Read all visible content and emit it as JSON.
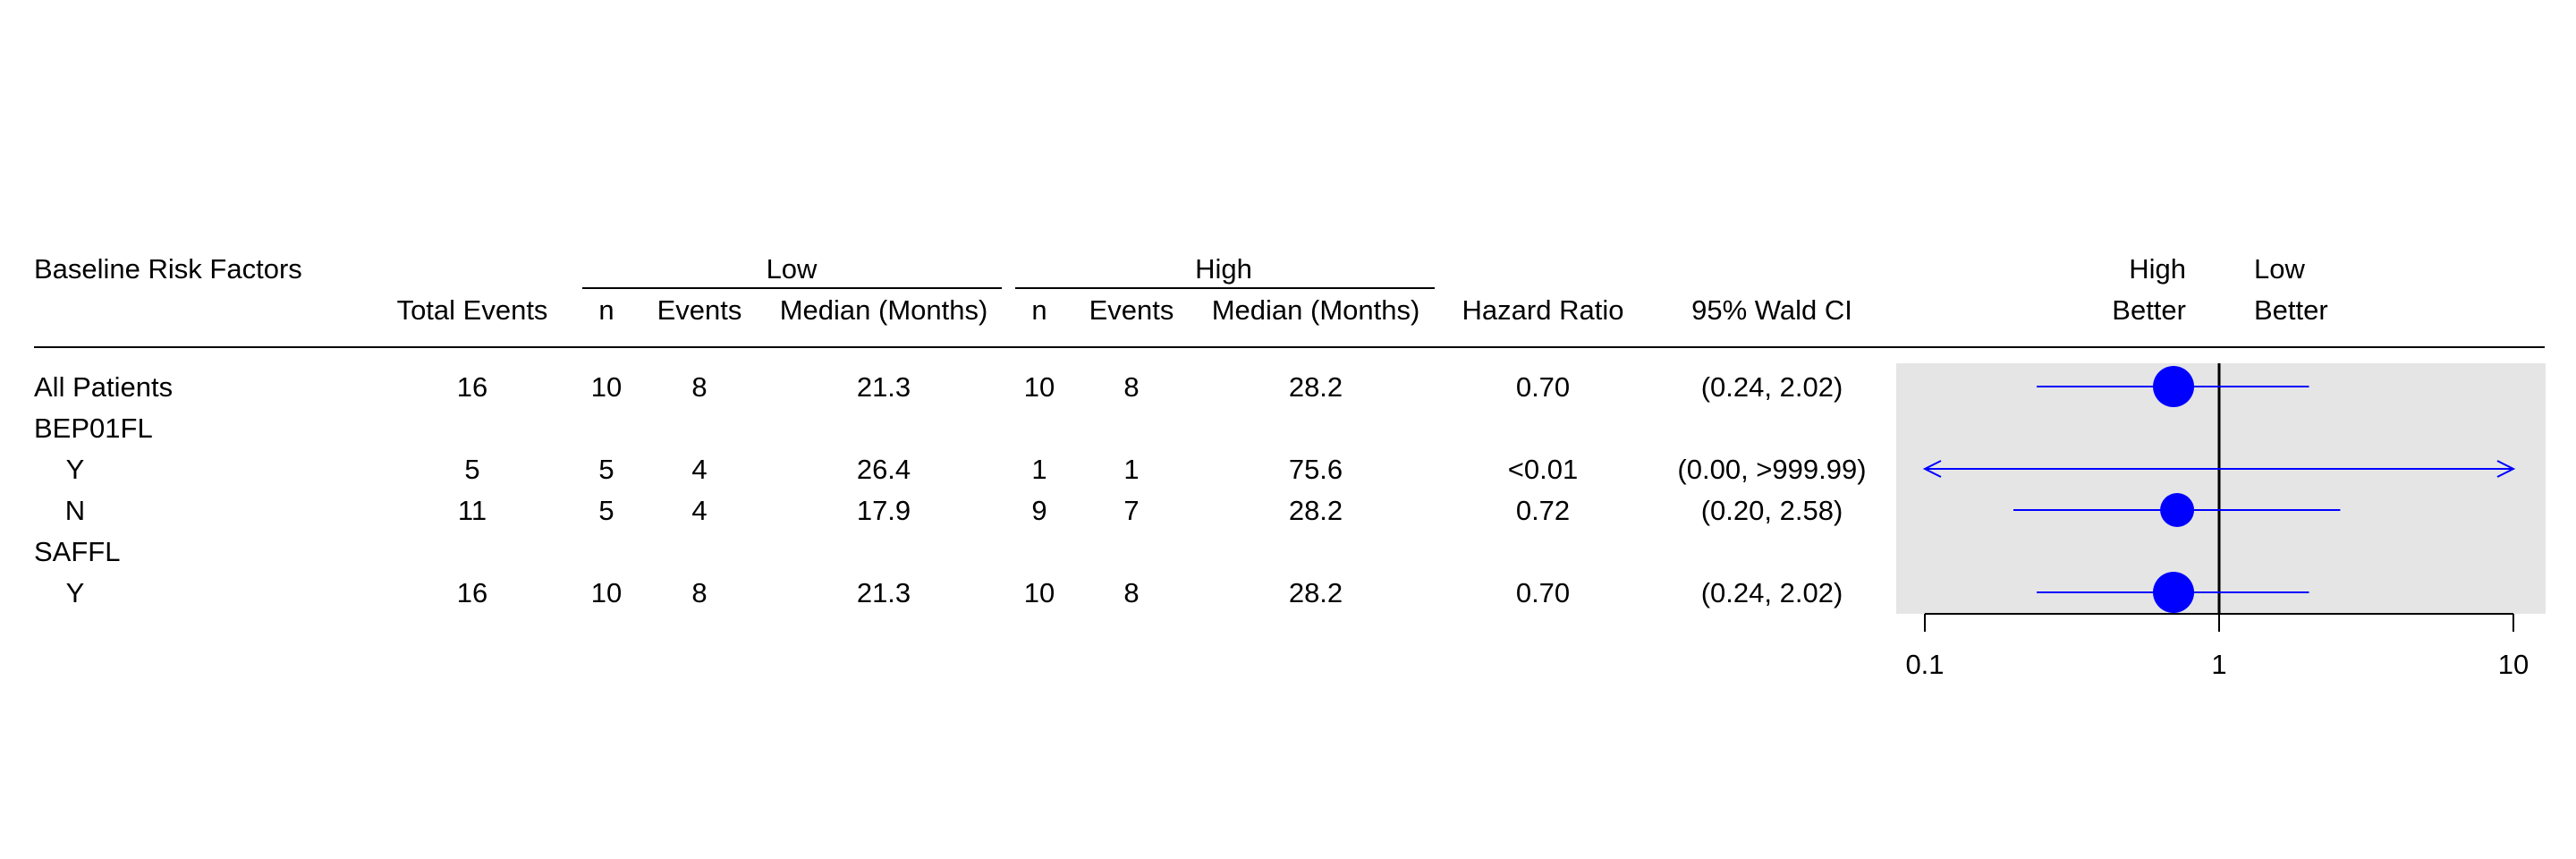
{
  "chart_data": {
    "type": "forest",
    "header": {
      "label_col": "Baseline Risk Factors",
      "total_events": "Total Events",
      "group_low": "Low",
      "group_high": "High",
      "n": "n",
      "events": "Events",
      "median": "Median (Months)",
      "hazard_ratio": "Hazard Ratio",
      "ci": "95% Wald CI",
      "favor_left_1": "High",
      "favor_left_2": "Better",
      "favor_right_1": "Low",
      "favor_right_2": "Better"
    },
    "rows": [
      {
        "label": "All Patients",
        "indent": false,
        "total": "16",
        "low_n": "10",
        "low_events": "8",
        "low_median": "21.3",
        "high_n": "10",
        "high_events": "8",
        "high_median": "28.2",
        "hr_text": "0.70",
        "ci_text": "(0.24, 2.02)",
        "hr": 0.7,
        "lo": 0.24,
        "hi": 2.02,
        "size": "large"
      },
      {
        "label": "BEP01FL",
        "indent": false,
        "heading": true
      },
      {
        "label": "Y",
        "indent": true,
        "total": "5",
        "low_n": "5",
        "low_events": "4",
        "low_median": "26.4",
        "high_n": "1",
        "high_events": "1",
        "high_median": "75.6",
        "hr_text": "<0.01",
        "ci_text": "(0.00, >999.99)",
        "hr": null,
        "lo": 0.1,
        "hi": 10,
        "arrow_left": true,
        "arrow_right": true
      },
      {
        "label": "N",
        "indent": true,
        "total": "11",
        "low_n": "5",
        "low_events": "4",
        "low_median": "17.9",
        "high_n": "9",
        "high_events": "7",
        "high_median": "28.2",
        "hr_text": "0.72",
        "ci_text": "(0.20, 2.58)",
        "hr": 0.72,
        "lo": 0.2,
        "hi": 2.58,
        "size": "medium"
      },
      {
        "label": "SAFFL",
        "indent": false,
        "heading": true
      },
      {
        "label": "Y",
        "indent": true,
        "total": "16",
        "low_n": "10",
        "low_events": "8",
        "low_median": "21.3",
        "high_n": "10",
        "high_events": "8",
        "high_median": "28.2",
        "hr_text": "0.70",
        "ci_text": "(0.24, 2.02)",
        "hr": 0.7,
        "lo": 0.24,
        "hi": 2.02,
        "size": "large"
      }
    ],
    "x_axis": {
      "scale": "log",
      "ticks": [
        0.1,
        1,
        10
      ],
      "tick_labels": [
        "0.1",
        "1",
        "10"
      ],
      "range": [
        0.1,
        10
      ],
      "reference_line": 1
    },
    "colors": {
      "point": "#0000ff",
      "ci_line": "#0000ff",
      "panel_bg": "#e5e5e5",
      "text": "#000000"
    }
  }
}
